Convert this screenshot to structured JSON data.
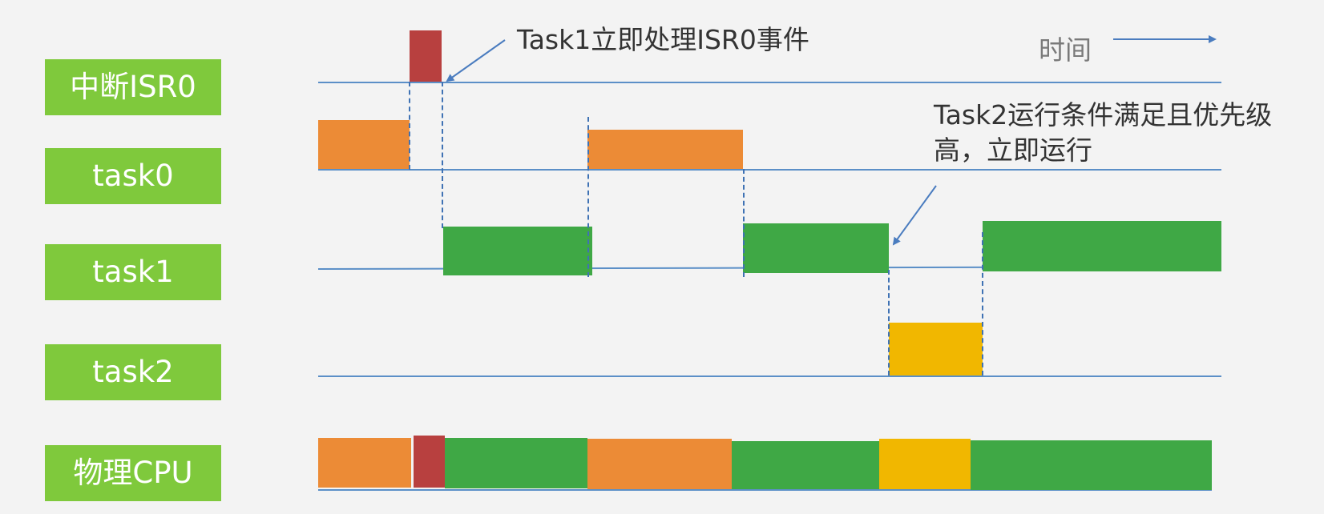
{
  "rows": [
    {
      "id": "isr0",
      "label": "中断ISR0"
    },
    {
      "id": "task0",
      "label": "task0"
    },
    {
      "id": "task1",
      "label": "task1"
    },
    {
      "id": "task2",
      "label": "task2"
    },
    {
      "id": "cpu",
      "label": "物理CPU"
    }
  ],
  "annotations": {
    "task1_isr": "Task1立即处理ISR0事件",
    "task2_line1": "Task2运行条件满足且优先级",
    "task2_line2": "高，立即运行"
  },
  "time_axis": {
    "label": "时间"
  },
  "colors": {
    "isr0": "#b8403f",
    "task0": "#ec8b36",
    "task1": "#3fa845",
    "task2": "#f1b700",
    "label_bg": "#7fc93c",
    "lane": "#5b8fc7"
  },
  "timeline": {
    "isr0": [
      [
        1,
        2
      ]
    ],
    "task0": [
      [
        0,
        1
      ],
      [
        3,
        5
      ]
    ],
    "task1": [
      [
        2,
        3
      ],
      [
        5,
        7
      ],
      [
        8,
        10
      ]
    ],
    "task2": [
      [
        7,
        8
      ]
    ],
    "cpu": [
      [
        "task0",
        0,
        1
      ],
      [
        "isr0",
        1,
        2
      ],
      [
        "task1",
        2,
        3
      ],
      [
        "task0",
        3,
        5
      ],
      [
        "task1",
        5,
        7
      ],
      [
        "task2",
        7,
        8
      ],
      [
        "task1",
        8,
        10
      ]
    ]
  }
}
